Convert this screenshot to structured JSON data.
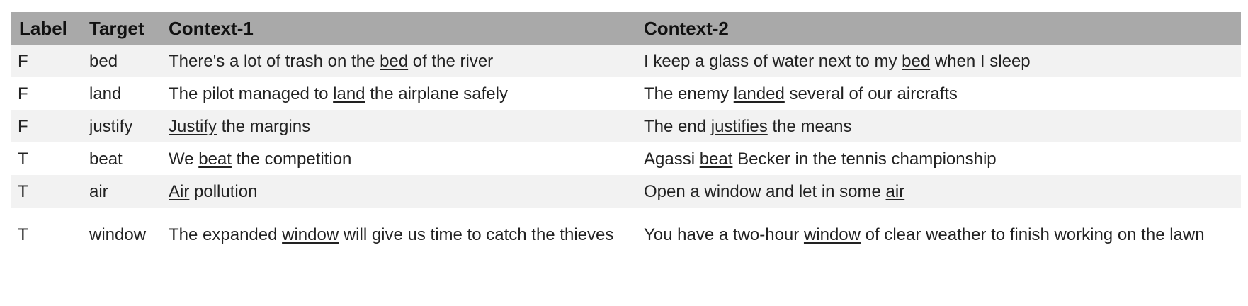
{
  "table": {
    "headers": {
      "label": "Label",
      "target": "Target",
      "context1": "Context-1",
      "context2": "Context-2"
    },
    "rows": [
      {
        "label": "F",
        "target": "bed",
        "context1": {
          "before": "There's a lot of trash on the ",
          "word": "bed",
          "after": " of the river"
        },
        "context2": {
          "before": "I keep a glass of water next to my ",
          "word": "bed",
          "after": " when I sleep"
        }
      },
      {
        "label": "F",
        "target": "land",
        "context1": {
          "before": "The pilot managed to ",
          "word": "land",
          "after": " the airplane safely"
        },
        "context2": {
          "before": "The enemy ",
          "word": "landed",
          "after": " several of our aircrafts"
        }
      },
      {
        "label": "F",
        "target": "justify",
        "context1": {
          "before": "",
          "word": "Justify",
          "after": " the margins"
        },
        "context2": {
          "before": "The end ",
          "word": "justifies",
          "after": " the means"
        }
      },
      {
        "label": "T",
        "target": "beat",
        "context1": {
          "before": "We ",
          "word": "beat",
          "after": " the competition"
        },
        "context2": {
          "before": "Agassi ",
          "word": "beat",
          "after": " Becker in the tennis championship"
        }
      },
      {
        "label": "T",
        "target": "air",
        "context1": {
          "before": "",
          "word": "Air",
          "after": " pollution"
        },
        "context2": {
          "before": "Open a window and let in some ",
          "word": "air",
          "after": ""
        }
      },
      {
        "label": "T",
        "target": "window",
        "context1": {
          "before": "The expanded ",
          "word": "window",
          "after": " will give us time to catch the thieves"
        },
        "context2": {
          "before": "You have a two-hour ",
          "word": "window",
          "after": " of clear weather to finish working on the lawn"
        }
      }
    ]
  }
}
